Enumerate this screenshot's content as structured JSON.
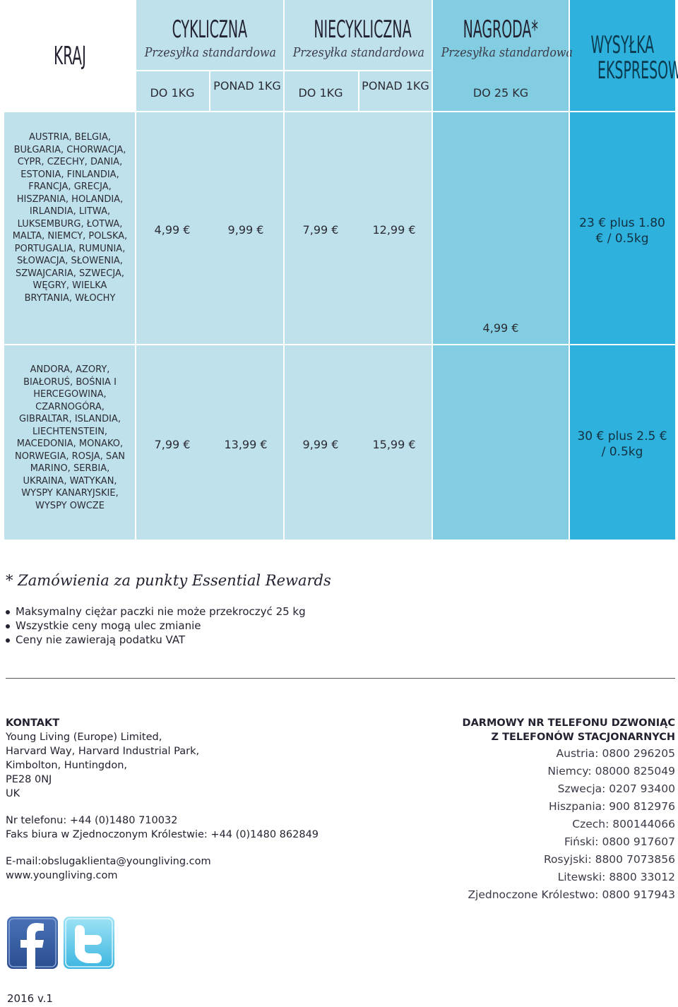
{
  "header": {
    "kraj": "KRAJ",
    "cykliczna": {
      "title": "CYKLICZNA",
      "sub": "Przesyłka standardowa",
      "col1": "DO 1KG",
      "col2": "PONAD 1KG"
    },
    "niecykliczna": {
      "title": "NIECYKLICZNA",
      "sub": "Przesyłka standardowa",
      "col1": "DO 1KG",
      "col2": "PONAD 1KG"
    },
    "nagroda": {
      "title": "NAGRODA*",
      "sub": "Przesyłka standardowa",
      "col1": "DO 25 KG"
    },
    "ekspres": {
      "line1": "WYSYŁKA",
      "line2": "EKSPRESOWA"
    }
  },
  "rows": [
    {
      "countries": "AUSTRIA, BELGIA, BUŁGARIA, CHORWACJA, CYPR, CZECHY, DANIA, ESTONIA, FINLANDIA, FRANCJA, GRECJA, HISZPANIA, HOLANDIA, IRLANDIA, LITWA, LUKSEMBURG, ŁOTWA, MALTA, NIEMCY, POLSKA, PORTUGALIA, RUMUNIA, SŁOWACJA, SŁOWENIA, SZWAJCARIA, SZWECJA, WĘGRY, WIELKA BRYTANIA, WŁOCHY",
      "cyk_do1": "4,99 €",
      "cyk_ponad1": "9,99 €",
      "niecyk_do1": "7,99 €",
      "niecyk_ponad1": "12,99 €",
      "ekspres": "23 € plus 1.80 € / 0.5kg"
    },
    {
      "countries": "ANDORA, AZORY, BIAŁORUŚ, BOŚNIA I HERCEGOWINA, CZARNOGÓRA, GIBRALTAR, ISLANDIA, LIECHTENSTEIN, MACEDONIA, MONAKO, NORWEGIA, ROSJA, SAN MARINO, SERBIA, UKRAINA, WATYKAN, WYSPY KANARYJSKIE, WYSPY OWCZE",
      "cyk_do1": "7,99 €",
      "cyk_ponad1": "13,99 €",
      "niecyk_do1": "9,99 €",
      "niecyk_ponad1": "15,99 €",
      "ekspres": "30 € plus 2.5 € / 0.5kg"
    }
  ],
  "nagroda_price": "4,99 €",
  "notes": {
    "title": "* Zamówienia za punkty Essential Rewards",
    "bullets": [
      "Maksymalny ciężar paczki nie może przekroczyć 25 kg",
      "Wszystkie ceny mogą ulec zmianie",
      "Ceny nie zawierają podatku VAT"
    ]
  },
  "contact": {
    "heading": "KONTAKT",
    "lines": [
      "Young Living (Europe) Limited,",
      "Harvard Way, Harvard Industrial Park,",
      "Kimbolton, Huntingdon,",
      "PE28 0NJ",
      "UK"
    ],
    "phone": "Nr telefonu: +44 (0)1480 710032",
    "fax": "Faks biura w Zjednoczonym Królestwie: +44 (0)1480 862849",
    "email": "E-mail:obslugaklienta@youngliving.com",
    "web": "www.youngliving.com"
  },
  "freephone": {
    "heading1": "DARMOWY NR TELEFONU DZWONIĄC",
    "heading2": "Z TELEFONÓW STACJONARNYCH",
    "numbers": [
      "Austria: 0800 296205",
      "Niemcy: 08000 825049",
      "Szwecja: 0207 93400",
      "Hiszpania: 900 812976",
      "Czech: 800144066",
      "Fiński:  0800 917607",
      "Rosyjski: 8800 7073856",
      "Litewski: 8800 33012",
      "Zjednoczone Królestwo: 0800 917943"
    ]
  },
  "social": {
    "facebook": "facebook-icon",
    "twitter": "twitter-icon"
  },
  "version": "2016 v.1",
  "colors": {
    "light": "#bfe1ec",
    "mid": "#82cde2",
    "dark": "#2eb1dc"
  }
}
